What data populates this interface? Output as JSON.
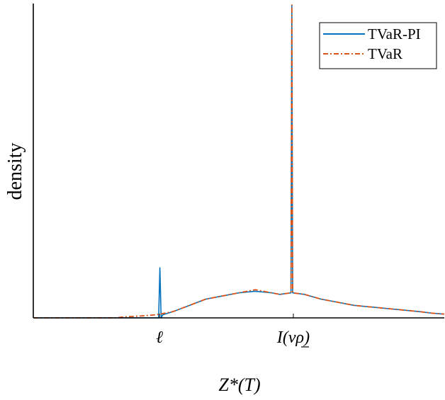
{
  "chart_data": {
    "type": "line",
    "xlabel": "Z*(T)",
    "ylabel": "density",
    "x_tick_labels": [
      "ℓ",
      "I(νρ)"
    ],
    "xlim": [
      0,
      1
    ],
    "ylim": [
      0,
      1
    ],
    "grid": false,
    "legend_position": "top-right",
    "series": [
      {
        "name": "TVaR-PI",
        "color": "#0072BD",
        "style": "solid",
        "points": [
          [
            0,
            0
          ],
          [
            0.305,
            0
          ],
          [
            0.308,
            0.16
          ],
          [
            0.311,
            0
          ],
          [
            0.315,
            0.01
          ],
          [
            0.34,
            0.02
          ],
          [
            0.38,
            0.04
          ],
          [
            0.42,
            0.06
          ],
          [
            0.46,
            0.07
          ],
          [
            0.5,
            0.08
          ],
          [
            0.54,
            0.085
          ],
          [
            0.58,
            0.08
          ],
          [
            0.6,
            0.075
          ],
          [
            0.627,
            0.08
          ],
          [
            0.629,
            1.0
          ],
          [
            0.631,
            0.08
          ],
          [
            0.66,
            0.075
          ],
          [
            0.7,
            0.06
          ],
          [
            0.74,
            0.05
          ],
          [
            0.78,
            0.04
          ],
          [
            0.82,
            0.035
          ],
          [
            0.86,
            0.03
          ],
          [
            0.9,
            0.025
          ],
          [
            0.94,
            0.02
          ],
          [
            0.97,
            0.015
          ],
          [
            1.0,
            0.012
          ]
        ]
      },
      {
        "name": "TVaR",
        "color": "#D95319",
        "style": "dashdot",
        "points": [
          [
            0,
            0
          ],
          [
            0.2,
            0
          ],
          [
            0.22,
            0.003
          ],
          [
            0.26,
            0.006
          ],
          [
            0.3,
            0.01
          ],
          [
            0.34,
            0.02
          ],
          [
            0.38,
            0.04
          ],
          [
            0.42,
            0.06
          ],
          [
            0.46,
            0.07
          ],
          [
            0.5,
            0.08
          ],
          [
            0.54,
            0.09
          ],
          [
            0.58,
            0.08
          ],
          [
            0.6,
            0.075
          ],
          [
            0.627,
            0.08
          ],
          [
            0.629,
            1.0
          ],
          [
            0.631,
            0.08
          ],
          [
            0.66,
            0.075
          ],
          [
            0.7,
            0.06
          ],
          [
            0.74,
            0.05
          ],
          [
            0.78,
            0.04
          ],
          [
            0.82,
            0.035
          ],
          [
            0.86,
            0.03
          ],
          [
            0.9,
            0.025
          ],
          [
            0.94,
            0.02
          ],
          [
            0.97,
            0.015
          ],
          [
            1.0,
            0.012
          ]
        ]
      }
    ]
  }
}
